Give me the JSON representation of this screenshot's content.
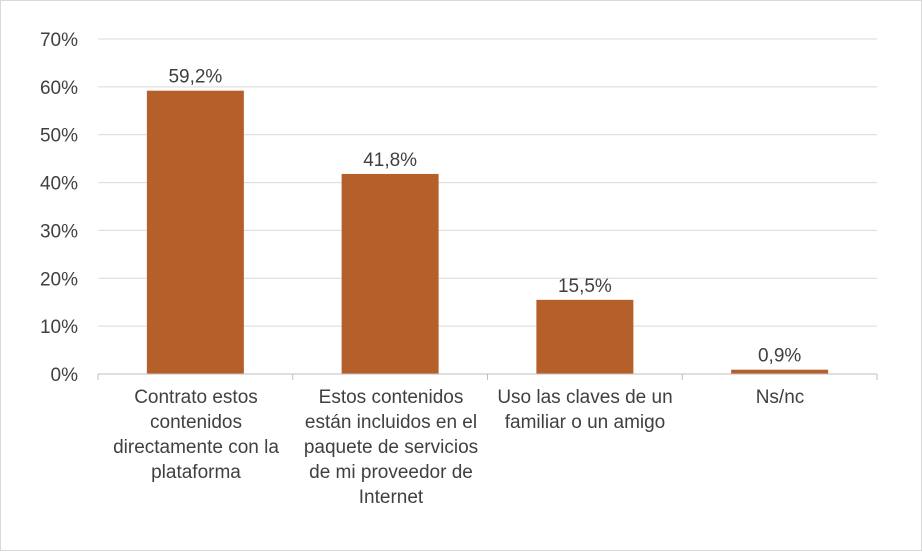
{
  "chart_data": {
    "type": "bar",
    "title": "",
    "xlabel": "",
    "ylabel": "",
    "ylim": [
      0,
      70
    ],
    "ytick_step": 10,
    "ytick_labels": [
      "0%",
      "10%",
      "20%",
      "30%",
      "40%",
      "50%",
      "60%",
      "70%"
    ],
    "grid": true,
    "legend": "none",
    "bar_color": "#b5602a",
    "categories": [
      "Contrato estos contenidos directamente con la plataforma",
      "Estos contenidos están incluidos en el paquete de servicios de mi proveedor de Internet",
      "Uso las claves de un familiar o un amigo",
      "Ns/nc"
    ],
    "values": [
      59.2,
      41.8,
      15.5,
      0.9
    ],
    "value_labels": [
      "59,2%",
      "41,8%",
      "15,5%",
      "0,9%"
    ]
  },
  "colors": {
    "bar": "#b5602a",
    "grid": "#d9d9d9",
    "axis": "#bfbfbf",
    "text": "#404040",
    "border": "#d9d9d9"
  }
}
